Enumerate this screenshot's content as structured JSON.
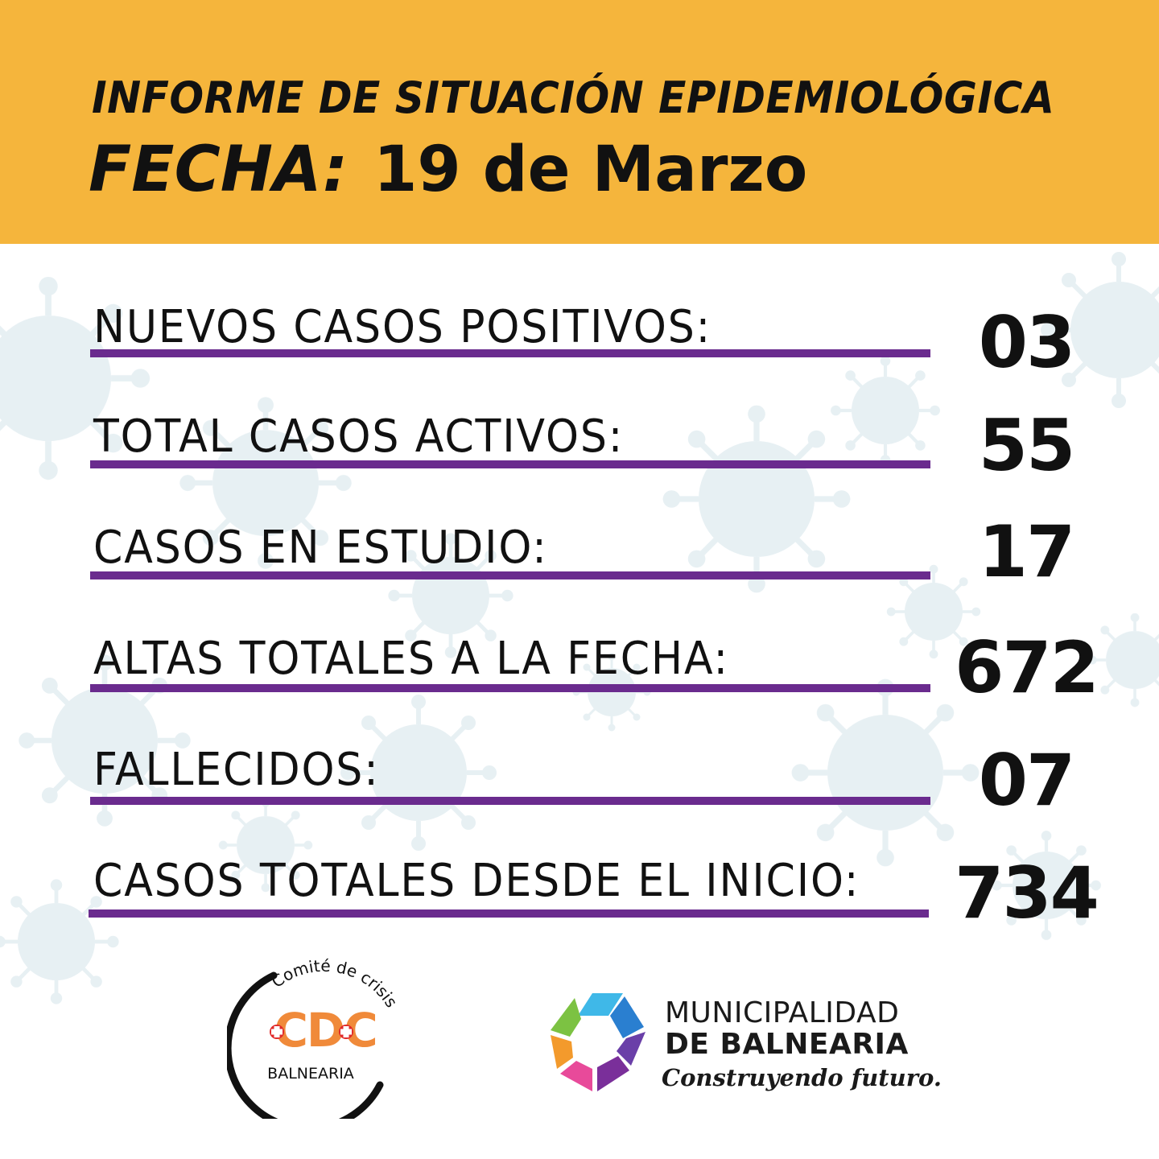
{
  "header": {
    "title": "INFORME DE SITUACIÓN EPIDEMIOLÓGICA",
    "date_label": "FECHA:",
    "date_value": "19 de Marzo"
  },
  "stats": [
    {
      "label": "NUEVOS CASOS POSITIVOS:",
      "value": "03"
    },
    {
      "label": "TOTAL CASOS ACTIVOS:",
      "value": "55"
    },
    {
      "label": "CASOS EN ESTUDIO:",
      "value": "17"
    },
    {
      "label": "ALTAS TOTALES A LA FECHA:",
      "value": "672"
    },
    {
      "label": "FALLECIDOS:",
      "value": "07"
    },
    {
      "label": "CASOS TOTALES DESDE EL INICIO:",
      "value": "734"
    }
  ],
  "cdc_logo": {
    "arc_text": "Comité de crisis",
    "acronym": "CDC",
    "place": "BALNEARIA"
  },
  "municipality": {
    "line1": "MUNICIPALIDAD",
    "line2": "DE BALNEARIA",
    "slogan": "Construyendo futuro."
  },
  "colors": {
    "header_bg": "#f5b53c",
    "stat_line": "#6a2b8e",
    "cdc_orange": "#f08a3a",
    "cdc_red": "#e02a2a",
    "virus_tint": "#b9d3dd"
  }
}
